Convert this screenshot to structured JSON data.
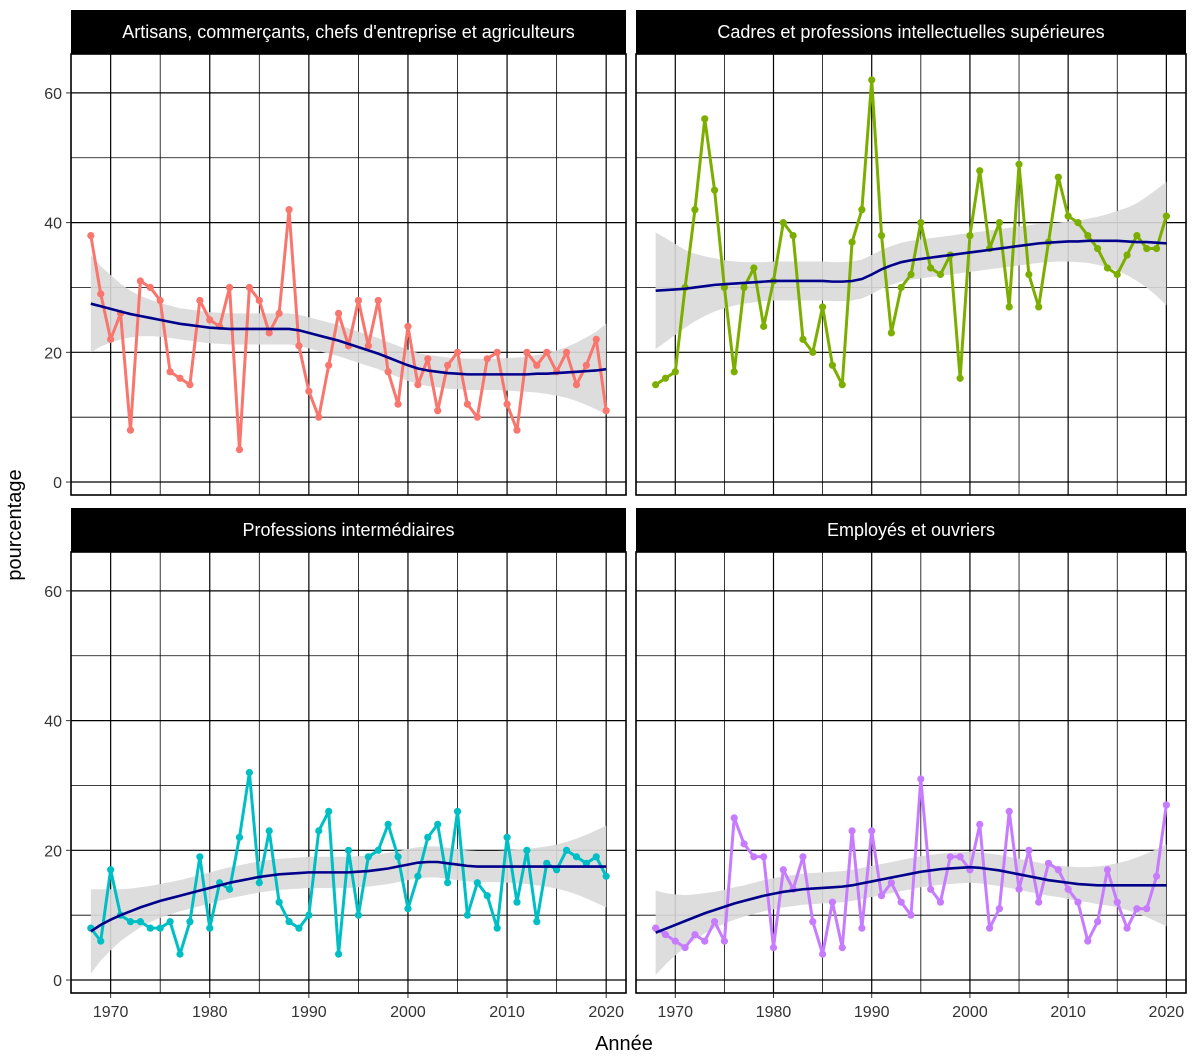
{
  "chart_data": {
    "type": "line",
    "xlabel": "Année",
    "ylabel": "pourcentage",
    "xlim": [
      1966,
      2022
    ],
    "ylim": [
      -2,
      66
    ],
    "x_ticks": [
      "1970",
      "1980",
      "1990",
      "2000",
      "2010",
      "2020"
    ],
    "y_ticks": [
      "0",
      "20",
      "40",
      "60"
    ],
    "grid": "on",
    "legend": "none",
    "trend_color": "#00008B",
    "band_color": "#D9D9D9",
    "years": [
      1968,
      1969,
      1970,
      1971,
      1972,
      1973,
      1974,
      1975,
      1976,
      1977,
      1978,
      1979,
      1980,
      1981,
      1982,
      1983,
      1984,
      1985,
      1986,
      1987,
      1988,
      1989,
      1990,
      1991,
      1992,
      1993,
      1994,
      1995,
      1996,
      1997,
      1998,
      1999,
      2000,
      2001,
      2002,
      2003,
      2004,
      2005,
      2006,
      2007,
      2008,
      2009,
      2010,
      2011,
      2012,
      2013,
      2014,
      2015,
      2016,
      2017,
      2018,
      2019,
      2020
    ],
    "panels": [
      {
        "title": "Artisans, commerçants, chefs d'entreprise et agriculteurs",
        "color": "#F8766D",
        "values": [
          38,
          29,
          22,
          26,
          8,
          31,
          30,
          28,
          17,
          16,
          15,
          28,
          25,
          24,
          30,
          5,
          30,
          28,
          23,
          26,
          42,
          21,
          14,
          10,
          18,
          26,
          21,
          28,
          21,
          28,
          17,
          12,
          24,
          15,
          19,
          11,
          18,
          20,
          12,
          10,
          19,
          20,
          12,
          8,
          20,
          18,
          20,
          17,
          20,
          15,
          18,
          22,
          11
        ],
        "trend": [
          27.5,
          27.1,
          26.7,
          26.3,
          25.9,
          25.6,
          25.3,
          25.0,
          24.7,
          24.4,
          24.2,
          24.0,
          23.8,
          23.7,
          23.6,
          23.6,
          23.6,
          23.6,
          23.6,
          23.6,
          23.6,
          23.4,
          23.0,
          22.6,
          22.2,
          21.8,
          21.3,
          20.8,
          20.3,
          19.8,
          19.2,
          18.6,
          18.0,
          17.5,
          17.2,
          17.0,
          16.8,
          16.7,
          16.6,
          16.6,
          16.6,
          16.6,
          16.6,
          16.6,
          16.6,
          16.7,
          16.7,
          16.8,
          16.9,
          17.0,
          17.1,
          17.2,
          17.4
        ],
        "band_halfwidth": [
          7.5,
          6.2,
          5.2,
          4.3,
          3.6,
          3.1,
          2.8,
          2.6,
          2.5,
          2.4,
          2.4,
          2.4,
          2.4,
          2.4,
          2.4,
          2.4,
          2.4,
          2.4,
          2.4,
          2.4,
          2.4,
          2.4,
          2.4,
          2.4,
          2.4,
          2.4,
          2.4,
          2.4,
          2.4,
          2.4,
          2.4,
          2.4,
          2.4,
          2.4,
          2.4,
          2.4,
          2.4,
          2.4,
          2.4,
          2.4,
          2.4,
          2.4,
          2.5,
          2.6,
          2.7,
          2.9,
          3.1,
          3.5,
          3.9,
          4.5,
          5.2,
          6.0,
          7.0
        ]
      },
      {
        "title": "Cadres et professions intellectuelles supérieures",
        "color": "#7CAE00",
        "values": [
          15,
          16,
          17,
          30,
          42,
          56,
          45,
          30,
          17,
          30,
          33,
          24,
          31,
          40,
          38,
          22,
          20,
          27,
          18,
          15,
          37,
          42,
          62,
          38,
          23,
          30,
          32,
          40,
          33,
          32,
          35,
          16,
          38,
          48,
          36,
          40,
          27,
          49,
          32,
          27,
          37,
          47,
          41,
          40,
          38,
          36,
          33,
          32,
          35,
          38,
          36,
          36,
          41
        ],
        "trend": [
          29.5,
          29.6,
          29.7,
          29.8,
          30.0,
          30.2,
          30.4,
          30.5,
          30.6,
          30.7,
          30.8,
          30.9,
          31.0,
          31.0,
          31.0,
          31.0,
          31.0,
          31.0,
          30.9,
          30.9,
          31.0,
          31.3,
          32.0,
          32.8,
          33.4,
          33.9,
          34.2,
          34.4,
          34.6,
          34.8,
          35.0,
          35.2,
          35.4,
          35.6,
          35.8,
          36.0,
          36.2,
          36.4,
          36.6,
          36.8,
          36.9,
          37.0,
          37.1,
          37.1,
          37.2,
          37.2,
          37.2,
          37.2,
          37.1,
          37.0,
          37.0,
          36.9,
          36.8
        ],
        "band_halfwidth": [
          9.0,
          8.0,
          7.0,
          6.0,
          5.2,
          4.6,
          4.1,
          3.7,
          3.4,
          3.2,
          3.1,
          3.0,
          3.0,
          3.0,
          3.0,
          3.0,
          3.0,
          3.0,
          3.0,
          3.0,
          3.0,
          3.0,
          3.0,
          3.0,
          3.0,
          3.0,
          3.0,
          3.0,
          3.0,
          3.0,
          3.0,
          3.0,
          3.0,
          3.0,
          3.0,
          3.0,
          3.0,
          3.0,
          3.0,
          3.0,
          3.0,
          3.0,
          3.1,
          3.2,
          3.4,
          3.7,
          4.1,
          4.6,
          5.2,
          6.0,
          7.0,
          8.2,
          9.5
        ]
      },
      {
        "title": "Professions intermédiaires",
        "color": "#00BFC4",
        "values": [
          8,
          6,
          17,
          10,
          9,
          9,
          8,
          8,
          9,
          4,
          9,
          19,
          8,
          15,
          14,
          22,
          32,
          15,
          23,
          12,
          9,
          8,
          10,
          23,
          26,
          4,
          20,
          10,
          19,
          20,
          24,
          19,
          11,
          16,
          22,
          24,
          15,
          26,
          10,
          15,
          13,
          8,
          22,
          12,
          20,
          9,
          18,
          17,
          20,
          19,
          18,
          19,
          16
        ],
        "trend": [
          7.5,
          8.5,
          9.3,
          10.0,
          10.6,
          11.2,
          11.7,
          12.2,
          12.6,
          13.0,
          13.4,
          13.8,
          14.2,
          14.6,
          15.0,
          15.3,
          15.6,
          15.9,
          16.1,
          16.3,
          16.4,
          16.5,
          16.6,
          16.6,
          16.6,
          16.6,
          16.6,
          16.7,
          16.8,
          17.0,
          17.2,
          17.5,
          17.8,
          18.1,
          18.2,
          18.2,
          18.0,
          17.8,
          17.6,
          17.5,
          17.5,
          17.5,
          17.5,
          17.5,
          17.5,
          17.5,
          17.5,
          17.5,
          17.5,
          17.5,
          17.5,
          17.5,
          17.5
        ],
        "band_halfwidth": [
          6.5,
          5.5,
          4.7,
          4.0,
          3.5,
          3.1,
          2.8,
          2.6,
          2.5,
          2.4,
          2.4,
          2.4,
          2.4,
          2.4,
          2.4,
          2.4,
          2.4,
          2.4,
          2.4,
          2.4,
          2.4,
          2.4,
          2.4,
          2.4,
          2.4,
          2.4,
          2.4,
          2.4,
          2.4,
          2.4,
          2.4,
          2.4,
          2.4,
          2.4,
          2.4,
          2.4,
          2.4,
          2.4,
          2.4,
          2.4,
          2.4,
          2.4,
          2.5,
          2.6,
          2.7,
          2.9,
          3.1,
          3.4,
          3.8,
          4.3,
          4.9,
          5.6,
          6.3
        ]
      },
      {
        "title": "Employés et ouvriers",
        "color": "#C77CFF",
        "values": [
          8,
          7,
          6,
          5,
          7,
          6,
          9,
          6,
          25,
          21,
          19,
          19,
          5,
          17,
          14,
          19,
          9,
          4,
          12,
          5,
          23,
          8,
          23,
          13,
          15,
          12,
          10,
          31,
          14,
          12,
          19,
          19,
          17,
          24,
          8,
          11,
          26,
          14,
          20,
          12,
          18,
          17,
          14,
          12,
          6,
          9,
          17,
          12,
          8,
          11,
          11,
          16,
          27
        ],
        "trend": [
          7.3,
          7.9,
          8.5,
          9.1,
          9.7,
          10.3,
          10.8,
          11.3,
          11.8,
          12.2,
          12.6,
          13.0,
          13.3,
          13.6,
          13.8,
          14.0,
          14.1,
          14.2,
          14.3,
          14.4,
          14.6,
          14.9,
          15.2,
          15.5,
          15.8,
          16.1,
          16.4,
          16.7,
          16.9,
          17.1,
          17.2,
          17.3,
          17.4,
          17.3,
          17.1,
          16.9,
          16.6,
          16.3,
          16.0,
          15.7,
          15.4,
          15.2,
          15.0,
          14.8,
          14.7,
          14.6,
          14.6,
          14.6,
          14.6,
          14.6,
          14.6,
          14.6,
          14.6
        ],
        "band_halfwidth": [
          6.5,
          5.5,
          4.7,
          4.0,
          3.5,
          3.1,
          2.8,
          2.6,
          2.5,
          2.4,
          2.4,
          2.4,
          2.4,
          2.4,
          2.4,
          2.4,
          2.4,
          2.4,
          2.4,
          2.4,
          2.4,
          2.4,
          2.4,
          2.4,
          2.4,
          2.4,
          2.4,
          2.4,
          2.4,
          2.4,
          2.4,
          2.4,
          2.4,
          2.4,
          2.4,
          2.4,
          2.4,
          2.4,
          2.4,
          2.4,
          2.4,
          2.4,
          2.5,
          2.6,
          2.7,
          2.9,
          3.1,
          3.4,
          3.8,
          4.3,
          4.9,
          5.6,
          6.3
        ]
      }
    ]
  }
}
